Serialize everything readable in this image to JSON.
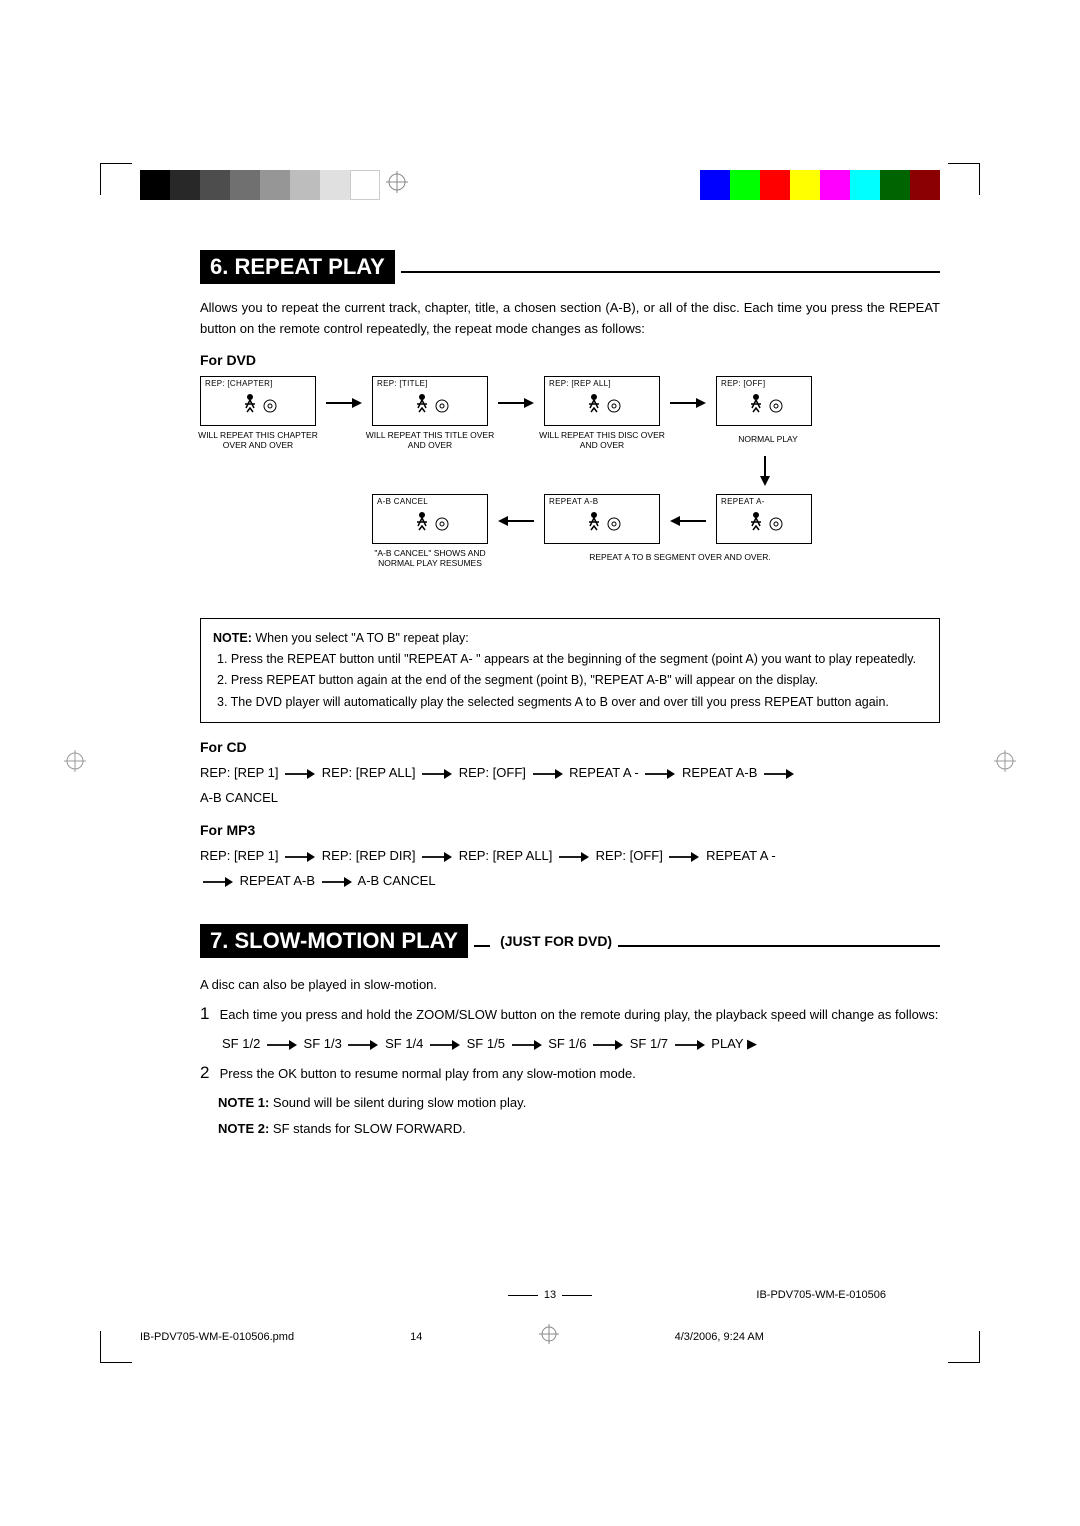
{
  "colorbar": {
    "left": [
      "#000000",
      "#282828",
      "#4d4d4d",
      "#707070",
      "#969696",
      "#bdbdbd",
      "#e0e0e0",
      "#ffffff"
    ],
    "right": [
      "#0000ff",
      "#00ff00",
      "#ff0000",
      "#ffff00",
      "#ff00ff",
      "#00ffff",
      "#006400",
      "#8b0000"
    ]
  },
  "section6": {
    "title": "6. REPEAT PLAY",
    "intro": "Allows you to repeat the current track, chapter, title, a chosen section (A-B), or all of the disc. Each time you press the REPEAT button on the remote control repeatedly, the repeat mode changes as follows:",
    "for_dvd": "For DVD",
    "boxes": {
      "b1": "REP:   [CHAPTER]",
      "b2": "REP:   [TITLE]",
      "b3": "REP:   [REP ALL]",
      "b4": "REP:   [OFF]",
      "b5": "A-B CANCEL",
      "b6": "REPEAT A-B",
      "b7": "REPEAT A-"
    },
    "captions": {
      "c1": "WILL REPEAT THIS CHAPTER OVER AND OVER",
      "c2": "WILL REPEAT THIS TITLE OVER AND OVER",
      "c3": "WILL REPEAT THIS DISC OVER AND OVER",
      "c4": "NORMAL PLAY",
      "c5a": "\"A-B CANCEL\" SHOWS AND",
      "c5b": "NORMAL PLAY RESUMES",
      "c6": "REPEAT A TO B SEGMENT OVER AND OVER."
    },
    "note": {
      "lead": "NOTE:",
      "lead_text": " When you select \"A TO B\" repeat play:",
      "n1": "1. Press the REPEAT button until \"REPEAT A- \" appears at the beginning of the segment (point A) you want to play repeatedly.",
      "n2": "2. Press REPEAT button again at the end of the segment (point B), \"REPEAT A-B\" will appear on the display.",
      "n3": "3. The DVD player will automatically play the selected segments A to B over and over till you press REPEAT button again."
    },
    "for_cd": "For CD",
    "cd_seq": [
      "REP: [REP 1]",
      "REP: [REP ALL]",
      "REP: [OFF]",
      "REPEAT A -",
      "REPEAT A-B",
      "A-B CANCEL"
    ],
    "for_mp3": "For MP3",
    "mp3_seq": [
      "REP: [REP 1]",
      "REP: [REP DIR]",
      "REP: [REP ALL]",
      "REP: [OFF]",
      "REPEAT A -",
      "REPEAT A-B",
      "A-B CANCEL"
    ]
  },
  "section7": {
    "title": "7. SLOW-MOTION PLAY",
    "subtitle": "(JUST FOR DVD)",
    "intro": "A disc can also be played in slow-motion.",
    "step1": "Each time you press and hold the ZOOM/SLOW button on the remote during play, the playback speed will change as follows:",
    "sf_seq": [
      "SF 1/2",
      "SF 1/3",
      "SF 1/4",
      "SF 1/5",
      "SF 1/6",
      "SF 1/7",
      "PLAY"
    ],
    "play_tri": "▶",
    "step2": "Press the OK button to resume normal play from any slow-motion mode.",
    "note1_label": "NOTE 1:",
    "note1_text": "  Sound will be silent during slow motion play.",
    "note2_label": "NOTE 2:",
    "note2_text": "  SF stands for SLOW FORWARD."
  },
  "footer": {
    "page_num": "13",
    "doc_id": "IB-PDV705-WM-E-010506",
    "pmd": "IB-PDV705-WM-E-010506.pmd",
    "pmd_page": "14",
    "date": "4/3/2006, 9:24 AM"
  }
}
